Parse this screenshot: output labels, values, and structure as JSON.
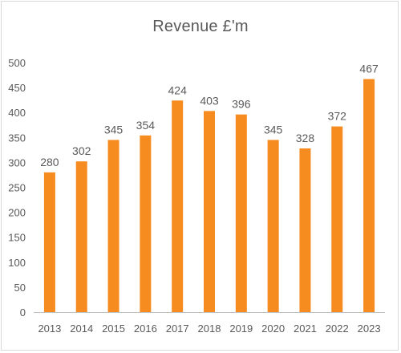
{
  "chart_data": {
    "type": "bar",
    "title": "Revenue £'m",
    "xlabel": "",
    "ylabel": "",
    "categories": [
      "2013",
      "2014",
      "2015",
      "2016",
      "2017",
      "2018",
      "2019",
      "2020",
      "2021",
      "2022",
      "2023"
    ],
    "values": [
      280,
      302,
      345,
      354,
      424,
      403,
      396,
      345,
      328,
      372,
      467
    ],
    "ylim": [
      0,
      500
    ],
    "yticks": [
      0,
      50,
      100,
      150,
      200,
      250,
      300,
      350,
      400,
      450,
      500
    ],
    "grid": false,
    "legend": "none",
    "data_labels": true,
    "colors": {
      "bar": "#f68b1f",
      "text": "#595959",
      "axis": "#bfbfbf"
    }
  }
}
